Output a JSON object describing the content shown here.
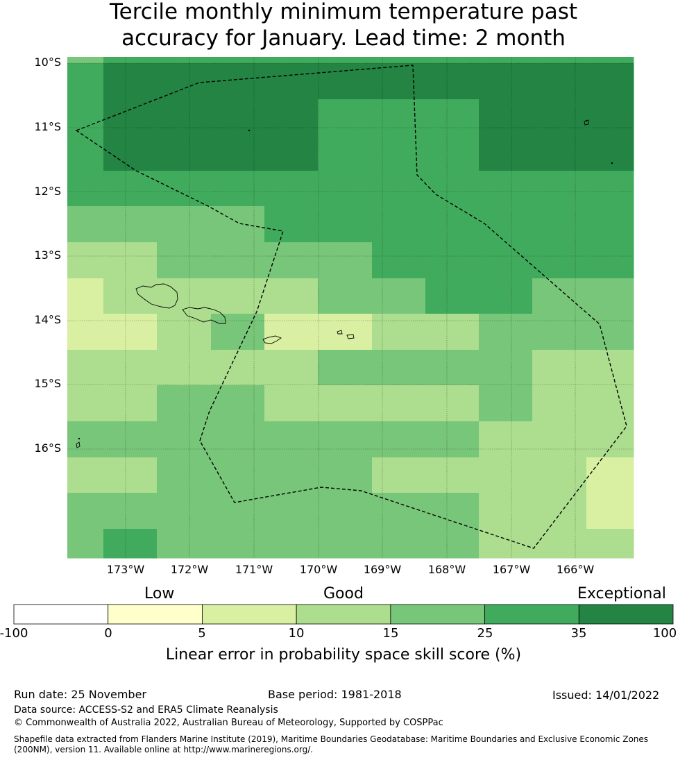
{
  "title": {
    "line1": "Tercile monthly minimum temperature past",
    "line2": "accuracy for January. Lead time: 2 month"
  },
  "map": {
    "lat_labels": [
      "10°S",
      "11°S",
      "12°S",
      "13°S",
      "14°S",
      "15°S",
      "16°S"
    ],
    "lon_labels": [
      "173°W",
      "172°W",
      "171°W",
      "170°W",
      "169°W",
      "168°W",
      "167°W",
      "166°W"
    ],
    "color_key": [
      "#ffffff",
      "#ffffcc",
      "#d9f0a3",
      "#addd8e",
      "#78c679",
      "#41ab5d",
      "#238443"
    ],
    "grid_classes": [
      [
        4,
        5,
        5,
        5,
        5,
        5,
        5,
        5,
        5,
        5,
        5,
        5,
        5,
        5,
        5,
        5
      ],
      [
        5,
        6,
        6,
        6,
        6,
        6,
        6,
        6,
        6,
        6,
        6,
        6,
        6,
        6,
        6,
        6
      ],
      [
        5,
        6,
        6,
        6,
        6,
        5,
        5,
        5,
        6,
        6,
        6,
        6,
        6,
        6,
        6,
        6
      ],
      [
        5,
        6,
        6,
        6,
        6,
        5,
        5,
        5,
        6,
        6,
        6,
        6,
        6,
        6,
        6,
        6
      ],
      [
        5,
        5,
        5,
        5,
        5,
        5,
        5,
        5,
        5,
        5,
        5,
        5,
        6,
        6,
        6,
        6
      ],
      [
        4,
        4,
        4,
        4,
        5,
        5,
        5,
        5,
        5,
        5,
        5,
        5,
        5,
        5,
        5,
        6
      ],
      [
        3,
        3,
        4,
        4,
        4,
        4,
        5,
        5,
        5,
        5,
        5,
        5,
        5,
        5,
        5,
        5
      ],
      [
        2,
        3,
        3,
        3,
        3,
        4,
        4,
        5,
        5,
        4,
        4,
        4,
        4,
        4,
        4,
        5
      ],
      [
        2,
        2,
        3,
        4,
        2,
        2,
        3,
        3,
        4,
        4,
        4,
        4,
        4,
        4,
        4,
        4
      ],
      [
        3,
        3,
        3,
        3,
        3,
        4,
        4,
        4,
        4,
        3,
        3,
        4,
        3,
        3,
        3,
        3
      ],
      [
        3,
        3,
        4,
        4,
        3,
        3,
        3,
        3,
        4,
        3,
        3,
        3,
        3,
        3,
        3,
        3
      ],
      [
        4,
        4,
        4,
        4,
        4,
        4,
        4,
        4,
        3,
        3,
        3,
        3,
        3,
        3,
        3,
        3
      ],
      [
        3,
        3,
        4,
        4,
        4,
        4,
        3,
        3,
        3,
        3,
        2,
        2,
        3,
        2,
        2,
        2
      ],
      [
        4,
        4,
        4,
        4,
        4,
        4,
        4,
        4,
        3,
        3,
        2,
        2,
        4,
        3,
        2,
        2
      ],
      [
        4,
        5,
        4,
        4,
        4,
        4,
        4,
        4,
        3,
        3,
        3,
        3,
        3,
        3,
        3,
        2
      ]
    ]
  },
  "colorbar": {
    "categories": [
      "Low",
      "Good",
      "Exceptional"
    ],
    "ticks": [
      "-100",
      "0",
      "5",
      "10",
      "15",
      "25",
      "35",
      "100"
    ],
    "label": "Linear error in probability space skill score (%)"
  },
  "footer": {
    "run_date": "Run date: 25 November",
    "base_period": "Base period: 1981-2018",
    "issued": "Issued: 14/01/2022",
    "data_source": "Data source: ACCESS-S2 and ERA5 Climate Reanalysis",
    "copyright": "© Commonwealth of Australia 2022, Australian Bureau of Meteorology, Supported by COSPPac",
    "shapefile_line1": "Shapefile data extracted from Flanders Marine Institute (2019), Maritime Boundaries Geodatabase: Maritime Boundaries and Exclusive Economic Zones",
    "shapefile_line2": "(200NM), version 11. Available online at http://www.marineregions.org/."
  }
}
